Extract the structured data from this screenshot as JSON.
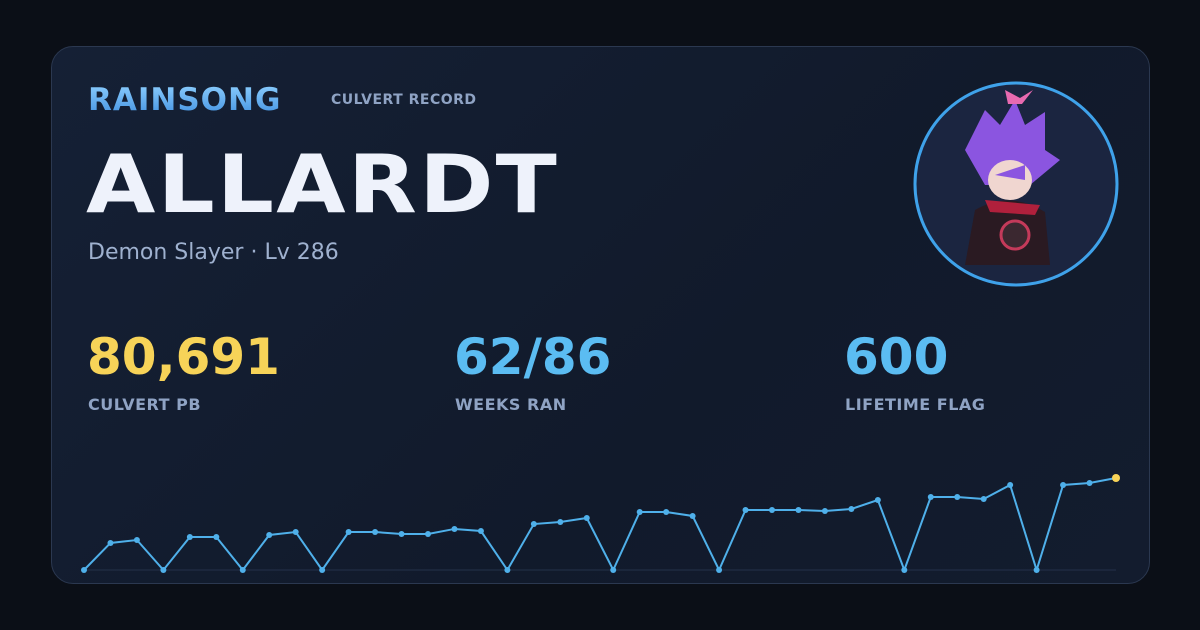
{
  "header": {
    "brand": "RAINSONG",
    "label": "CULVERT RECORD"
  },
  "name": "ALLARDT",
  "subtitle": "Demon Slayer · Lv 286",
  "stats": [
    {
      "value": "80,691",
      "label": "CULVERT PB",
      "color": "#f7d358"
    },
    {
      "value": "62/86",
      "label": "WEEKS RAN",
      "color": "#5bbcf2"
    },
    {
      "value": "600",
      "label": "LIFETIME FLAG",
      "color": "#5bbcf2"
    }
  ],
  "chart_data": {
    "type": "line",
    "color": "#4fb0ea",
    "last_color": "#f7d358",
    "values": [
      0,
      23700,
      26300,
      0,
      28900,
      28900,
      0,
      30700,
      33300,
      0,
      33300,
      33300,
      31600,
      31600,
      36000,
      34200,
      0,
      40300,
      42100,
      45600,
      0,
      50900,
      50900,
      47400,
      0,
      52600,
      52600,
      52600,
      51700,
      53500,
      61400,
      0,
      64000,
      64000,
      62300,
      74600,
      0,
      74600,
      76300,
      80691
    ]
  }
}
